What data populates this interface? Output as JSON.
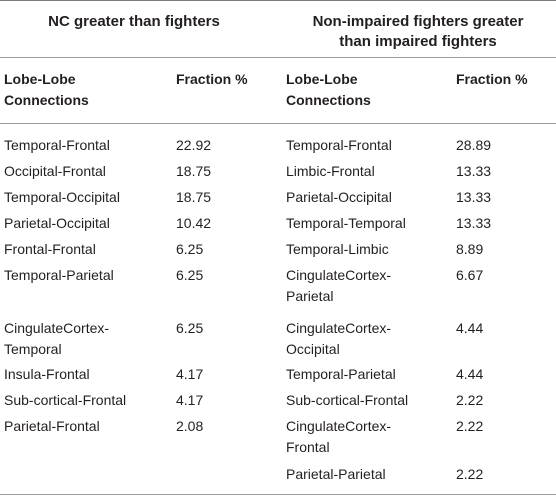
{
  "left": {
    "header": "NC greater than fighters",
    "col1_lines": [
      "Lobe-Lobe",
      "Connections"
    ],
    "col2": "Fraction %",
    "rows": [
      {
        "name": [
          "Temporal-Frontal"
        ],
        "value": "22.92"
      },
      {
        "name": [
          "Occipital-Frontal"
        ],
        "value": "18.75"
      },
      {
        "name": [
          "Temporal-Occipital"
        ],
        "value": "18.75"
      },
      {
        "name": [
          "Parietal-Occipital"
        ],
        "value": "10.42"
      },
      {
        "name": [
          "Frontal-Frontal"
        ],
        "value": "6.25"
      },
      {
        "name": [
          "Temporal-Parietal"
        ],
        "value": "6.25"
      },
      {
        "name": [
          "CingulateCortex-",
          "Temporal"
        ],
        "value": "6.25"
      },
      {
        "name": [
          "Insula-Frontal"
        ],
        "value": "4.17"
      },
      {
        "name": [
          "Sub-cortical-Frontal"
        ],
        "value": "4.17"
      },
      {
        "name": [
          "Parietal-Frontal"
        ],
        "value": "2.08"
      }
    ]
  },
  "right": {
    "header_lines": [
      "Non-impaired fighters greater",
      "than impaired fighters"
    ],
    "col1_lines": [
      "Lobe-Lobe",
      "Connections"
    ],
    "col2": "Fraction %",
    "rows": [
      {
        "name": [
          "Temporal-Frontal"
        ],
        "value": "28.89"
      },
      {
        "name": [
          "Limbic-Frontal"
        ],
        "value": "13.33"
      },
      {
        "name": [
          "Parietal-Occipital"
        ],
        "value": "13.33"
      },
      {
        "name": [
          "Temporal-Temporal"
        ],
        "value": "13.33"
      },
      {
        "name": [
          "Temporal-Limbic"
        ],
        "value": "8.89"
      },
      {
        "name": [
          "CingulateCortex-",
          "Parietal"
        ],
        "value": "6.67"
      },
      {
        "name": [
          "CingulateCortex-",
          "Occipital"
        ],
        "value": "4.44"
      },
      {
        "name": [
          "Temporal-Parietal"
        ],
        "value": "4.44"
      },
      {
        "name": [
          "Sub-cortical-Frontal"
        ],
        "value": "2.22"
      },
      {
        "name": [
          "CingulateCortex-",
          "Frontal"
        ],
        "value": "2.22"
      },
      {
        "name": [
          "Parietal-Parietal"
        ],
        "value": "2.22"
      }
    ]
  }
}
